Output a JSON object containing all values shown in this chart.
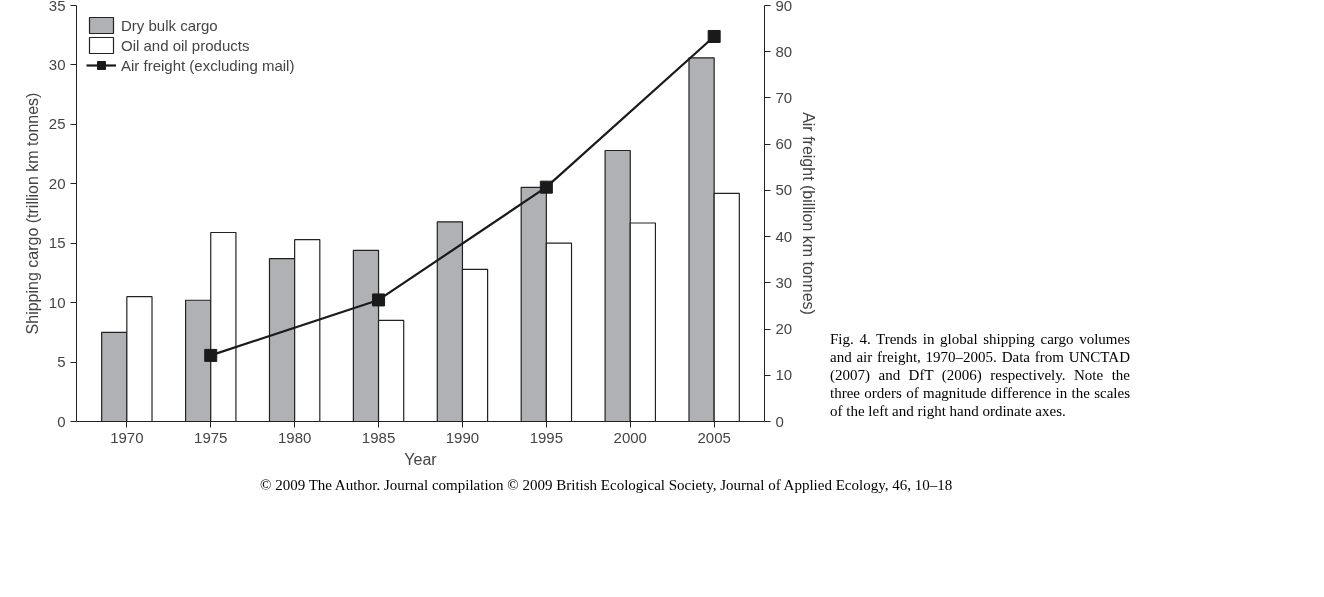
{
  "chart_data": {
    "type": "bar",
    "categories": [
      "1970",
      "1975",
      "1980",
      "1985",
      "1990",
      "1995",
      "2000",
      "2005"
    ],
    "xlabel": "Year",
    "ylabel": "Shipping cargo (trillion km tonnes)",
    "y2label": "Air freight (billion km tonnes)",
    "ylim": [
      0,
      35
    ],
    "yticks": [
      0,
      5,
      10,
      15,
      20,
      25,
      30,
      35
    ],
    "y2lim": [
      0,
      90
    ],
    "y2ticks": [
      0,
      10,
      20,
      30,
      40,
      50,
      60,
      70,
      80,
      90
    ],
    "grid": false,
    "legend": "top left",
    "series": [
      {
        "name": "Dry bulk cargo",
        "color": "#b0b1b5",
        "values": [
          7.5,
          10.2,
          13.7,
          14.4,
          16.8,
          19.7,
          22.8,
          30.6
        ]
      },
      {
        "name": "Oil and oil products",
        "color": "#ffffff",
        "values": [
          10.5,
          15.9,
          15.3,
          8.5,
          12.8,
          15.0,
          16.7,
          19.2
        ]
      },
      {
        "name": "Air freight (excluding mail)",
        "type": "line",
        "axis": "y2",
        "color": "#1a1a1a",
        "marker": "square",
        "values": [
          null,
          14.3,
          null,
          26.3,
          null,
          50.7,
          null,
          83.3
        ]
      }
    ],
    "annotations": [
      "Fig. 4. Trends in global shipping cargo volumes and air freight, 1970–2005. Data from UNCTAD (2007) and DfT (2006) respectively. Note the three orders of magnitude difference in the scales of the left and right hand ordinate axes.",
      "© 2009 The Author. Journal compilation © 2009 British Ecological Society, Journal of Applied Ecology, 46, 10–18"
    ]
  }
}
